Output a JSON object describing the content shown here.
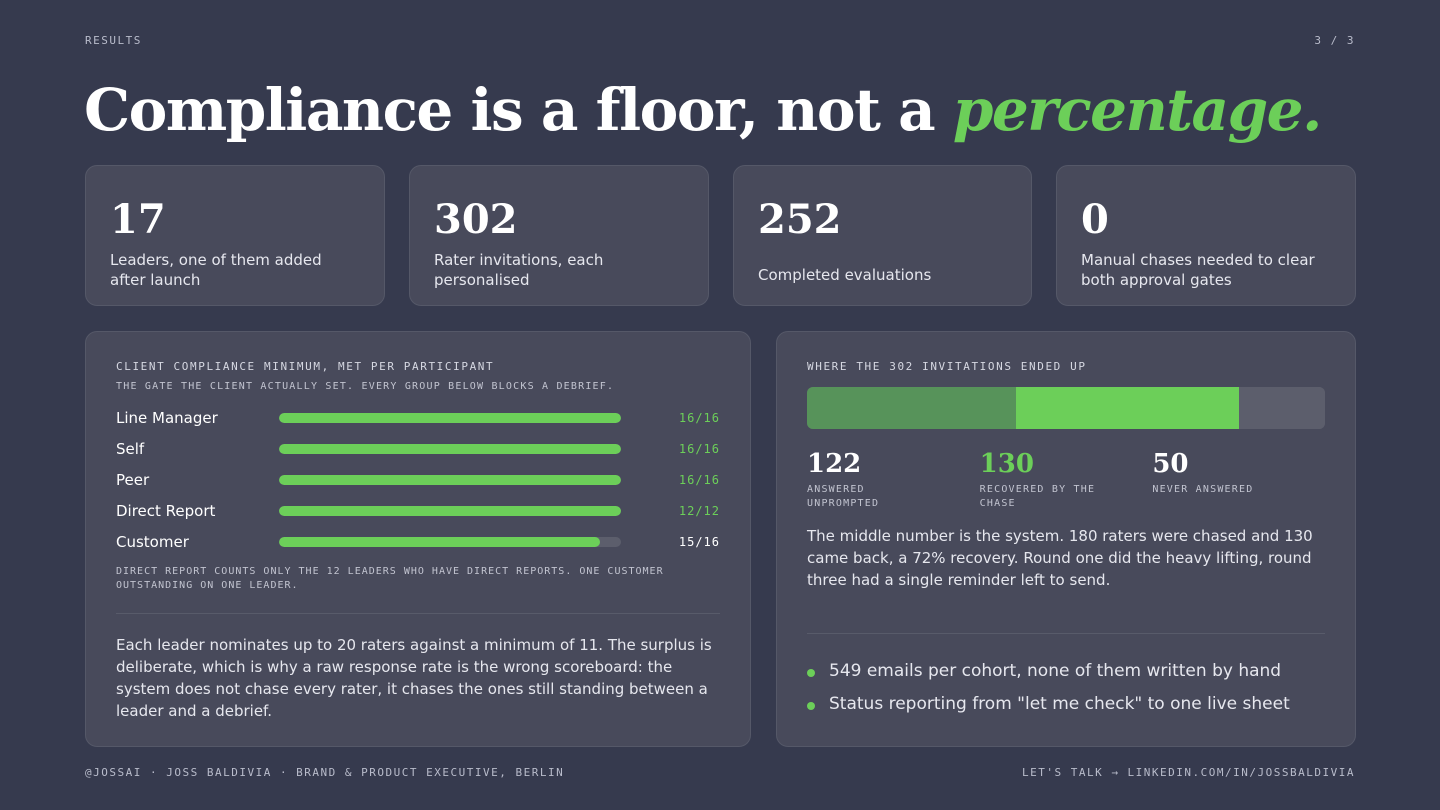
{
  "header": {
    "section": "RESULTS",
    "page": "3 / 3"
  },
  "headline": {
    "main": "Compliance is a floor, not a ",
    "accent": "percentage."
  },
  "stats": [
    {
      "value": "17",
      "label": "Leaders, one of them added after launch"
    },
    {
      "value": "302",
      "label": "Rater invitations, each personalised"
    },
    {
      "value": "252",
      "label": "Completed evaluations"
    },
    {
      "value": "0",
      "label": "Manual chases needed to clear both approval gates"
    }
  ],
  "left_panel": {
    "title": "CLIENT COMPLIANCE MINIMUM, MET PER PARTICIPANT",
    "subtitle": "THE GATE THE CLIENT ACTUALLY SET. EVERY GROUP BELOW BLOCKS A DEBRIEF.",
    "rows": [
      {
        "label": "Line Manager",
        "value": "16/16",
        "fraction": 1.0
      },
      {
        "label": "Self",
        "value": "16/16",
        "fraction": 1.0
      },
      {
        "label": "Peer",
        "value": "16/16",
        "fraction": 1.0
      },
      {
        "label": "Direct Report",
        "value": "12/12",
        "fraction": 1.0
      },
      {
        "label": "Customer",
        "value": "15/16",
        "fraction": 0.9375
      }
    ],
    "footnote": "DIRECT REPORT COUNTS ONLY THE 12 LEADERS WHO HAVE DIRECT REPORTS. ONE CUSTOMER OUTSTANDING ON ONE LEADER.",
    "paragraph": "Each leader nominates up to 20 raters against a minimum of 11. The surplus is deliberate, which is why a raw response rate is the wrong scoreboard: the system does not chase every rater, it chases the ones still standing between a leader and a debrief."
  },
  "right_panel": {
    "title": "WHERE THE 302 INVITATIONS ENDED UP",
    "segments": [
      {
        "value": "122",
        "label": "ANSWERED UNPROMPTED",
        "count": 122
      },
      {
        "value": "130",
        "label": "RECOVERED BY THE CHASE",
        "count": 130
      },
      {
        "value": "50",
        "label": "NEVER ANSWERED",
        "count": 50
      }
    ],
    "paragraph": "The middle number is the system. 180 raters were chased and 130 came back, a 72% recovery. Round one did the heavy lifting, round three had a single reminder left to send.",
    "bullets": [
      "549 emails per cohort, none of them written by hand",
      "Status reporting from \"let me check\" to one live sheet"
    ]
  },
  "footer": {
    "left": "@JOSSAI · JOSS BALDIVIA · BRAND & PRODUCT EXECUTIVE, BERLIN",
    "right": "LET'S TALK → LINKEDIN.COM/IN/JOSSBALDIVIA"
  },
  "colors": {
    "accent": "#6ccf59",
    "accent_dim": "#57935a",
    "background": "#363a4e",
    "card": "#484a5b"
  }
}
